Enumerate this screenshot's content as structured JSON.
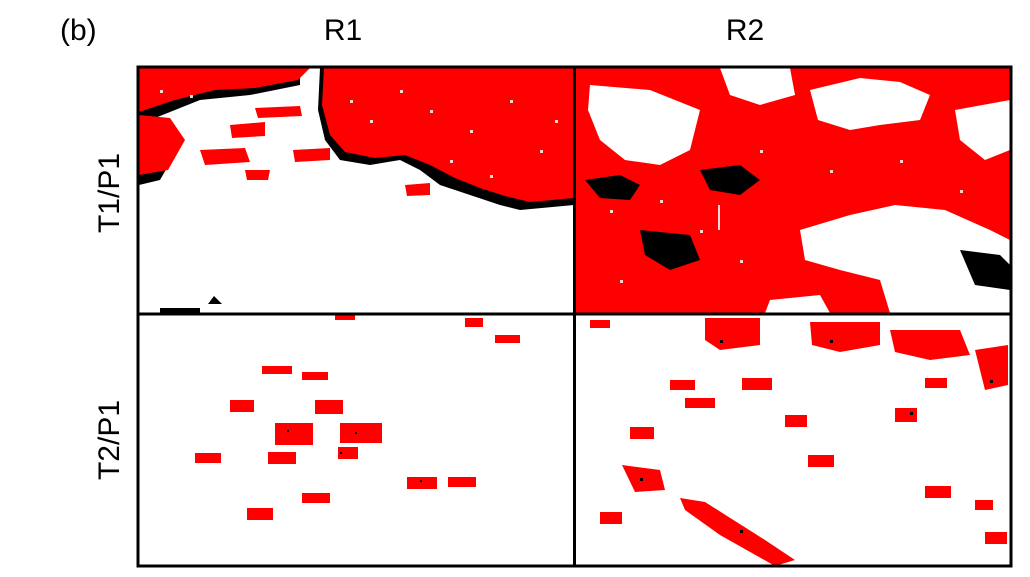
{
  "figure": {
    "panel_label": "(b)",
    "columns": [
      "R1",
      "R2"
    ],
    "rows": [
      "T1/P1",
      "T2/P1"
    ]
  },
  "colors": {
    "primary": "#ff0000",
    "secondary": "#000000",
    "background": "#ffffff",
    "border": "#000000"
  }
}
